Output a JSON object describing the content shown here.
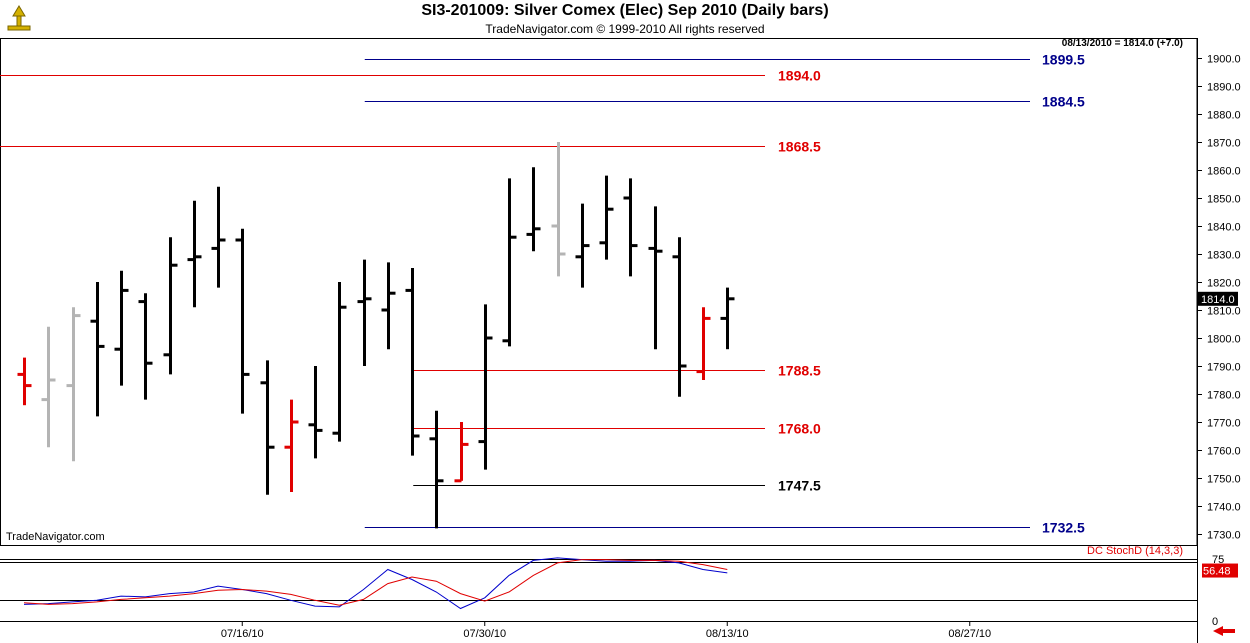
{
  "header": {
    "title": "SI3-201009:  Silver Comex (Elec) Sep 2010  (Daily bars)",
    "copyright": "TradeNavigator.com © 1999-2010 All rights reserved",
    "last_readout": "08/13/2010 = 1814.0 (+7.0)",
    "watermark": "TradeNavigator.com"
  },
  "colors": {
    "up": "#000000",
    "down": "#e00000",
    "neutral": "#b4b4b4",
    "blue_line": "#00008b",
    "red_line": "#e00000",
    "black_line": "#000000"
  },
  "chart_data": [
    {
      "type": "ohlc",
      "price_axis": {
        "ylim": [
          1725,
          1910
        ],
        "ticks": [
          1730,
          1740,
          1750,
          1760,
          1770,
          1780,
          1790,
          1800,
          1810,
          1820,
          1830,
          1840,
          1850,
          1860,
          1870,
          1880,
          1890,
          1900
        ],
        "labels": [
          "1730.0",
          "1740.0",
          "1750.0",
          "1760.0",
          "1770.0",
          "1780.0",
          "1790.0",
          "1800.0",
          "1810.0",
          "1820.0",
          "1830.0",
          "1840.0",
          "1850.0",
          "1860.0",
          "1870.0",
          "1880.0",
          "1890.0",
          "1900.0"
        ],
        "last_price_label": "1814.0"
      },
      "date_axis": {
        "labels": [
          "07/16/10",
          "07/30/10",
          "08/13/10",
          "08/27/10"
        ],
        "label_bar_index": [
          9,
          19,
          29,
          39
        ]
      },
      "bars": [
        {
          "o": 1787,
          "h": 1793,
          "l": 1776,
          "c": 1783,
          "color": "down"
        },
        {
          "o": 1778,
          "h": 1804,
          "l": 1761,
          "c": 1785,
          "color": "neutral"
        },
        {
          "o": 1783,
          "h": 1811,
          "l": 1756,
          "c": 1808,
          "color": "neutral"
        },
        {
          "o": 1806,
          "h": 1820,
          "l": 1772,
          "c": 1797,
          "color": "up"
        },
        {
          "o": 1796,
          "h": 1824,
          "l": 1783,
          "c": 1817,
          "color": "up"
        },
        {
          "o": 1813,
          "h": 1816,
          "l": 1778,
          "c": 1791,
          "color": "up"
        },
        {
          "o": 1794,
          "h": 1836,
          "l": 1787,
          "c": 1826,
          "color": "up"
        },
        {
          "o": 1828,
          "h": 1849,
          "l": 1811,
          "c": 1829,
          "color": "up"
        },
        {
          "o": 1832,
          "h": 1854,
          "l": 1818,
          "c": 1835,
          "color": "up"
        },
        {
          "o": 1835,
          "h": 1839,
          "l": 1773,
          "c": 1787,
          "color": "up"
        },
        {
          "o": 1784,
          "h": 1792,
          "l": 1744,
          "c": 1761,
          "color": "up"
        },
        {
          "o": 1761,
          "h": 1778,
          "l": 1745,
          "c": 1770,
          "color": "down"
        },
        {
          "o": 1769,
          "h": 1790,
          "l": 1757,
          "c": 1767,
          "color": "up"
        },
        {
          "o": 1766,
          "h": 1820,
          "l": 1763,
          "c": 1811,
          "color": "up"
        },
        {
          "o": 1813,
          "h": 1828,
          "l": 1790,
          "c": 1814,
          "color": "up"
        },
        {
          "o": 1810,
          "h": 1827,
          "l": 1796,
          "c": 1816,
          "color": "up"
        },
        {
          "o": 1817,
          "h": 1825,
          "l": 1758,
          "c": 1765,
          "color": "up"
        },
        {
          "o": 1764,
          "h": 1774,
          "l": 1732,
          "c": 1749,
          "color": "up"
        },
        {
          "o": 1749,
          "h": 1770,
          "l": 1749,
          "c": 1762,
          "color": "down"
        },
        {
          "o": 1763,
          "h": 1812,
          "l": 1753,
          "c": 1800,
          "color": "up"
        },
        {
          "o": 1799,
          "h": 1857,
          "l": 1797,
          "c": 1836,
          "color": "up"
        },
        {
          "o": 1837,
          "h": 1861,
          "l": 1831,
          "c": 1839,
          "color": "up"
        },
        {
          "o": 1840,
          "h": 1870,
          "l": 1822,
          "c": 1830,
          "color": "neutral"
        },
        {
          "o": 1829,
          "h": 1848,
          "l": 1818,
          "c": 1833,
          "color": "up"
        },
        {
          "o": 1834,
          "h": 1858,
          "l": 1828,
          "c": 1846,
          "color": "up"
        },
        {
          "o": 1850,
          "h": 1857,
          "l": 1822,
          "c": 1833,
          "color": "up"
        },
        {
          "o": 1832,
          "h": 1847,
          "l": 1796,
          "c": 1831,
          "color": "up"
        },
        {
          "o": 1829,
          "h": 1836,
          "l": 1779,
          "c": 1790,
          "color": "up"
        },
        {
          "o": 1788,
          "h": 1811,
          "l": 1785,
          "c": 1807,
          "color": "down"
        },
        {
          "o": 1807,
          "h": 1818,
          "l": 1796,
          "c": 1814,
          "color": "up"
        }
      ],
      "levels": [
        {
          "value": 1899.5,
          "label": "1899.5",
          "color": "blue",
          "from_bar": 15
        },
        {
          "value": 1894.0,
          "label": "1894.0",
          "color": "red",
          "from_bar": 0
        },
        {
          "value": 1884.5,
          "label": "1884.5",
          "color": "blue",
          "from_bar": 15
        },
        {
          "value": 1868.5,
          "label": "1868.5",
          "color": "red",
          "from_bar": 0
        },
        {
          "value": 1788.5,
          "label": "1788.5",
          "color": "red",
          "from_bar": 17
        },
        {
          "value": 1768.0,
          "label": "1768.0",
          "color": "red",
          "from_bar": 17
        },
        {
          "value": 1747.5,
          "label": "1747.5",
          "color": "black",
          "from_bar": 17
        },
        {
          "value": 1732.5,
          "label": "1732.5",
          "color": "blue",
          "from_bar": 15
        }
      ]
    },
    {
      "type": "line",
      "title": "DC StochD (14,3,3)",
      "ylim": [
        0,
        100
      ],
      "ticks": [
        0,
        75
      ],
      "reference_lines": [
        25,
        75
      ],
      "last_value_label": "56.48",
      "series": [
        {
          "color": "blue",
          "values": [
            20,
            21,
            23,
            25,
            30,
            29,
            33,
            35,
            42,
            38,
            33,
            25,
            18,
            17,
            38,
            62,
            50,
            35,
            15,
            28,
            55,
            73,
            76,
            74,
            72,
            72,
            73,
            70,
            62,
            58
          ]
        },
        {
          "color": "red",
          "values": [
            22,
            20,
            21,
            23,
            26,
            28,
            30,
            33,
            37,
            38,
            36,
            32,
            25,
            19,
            26,
            45,
            53,
            48,
            33,
            24,
            35,
            55,
            70,
            74,
            74,
            73,
            73,
            72,
            68,
            62
          ]
        }
      ]
    }
  ]
}
